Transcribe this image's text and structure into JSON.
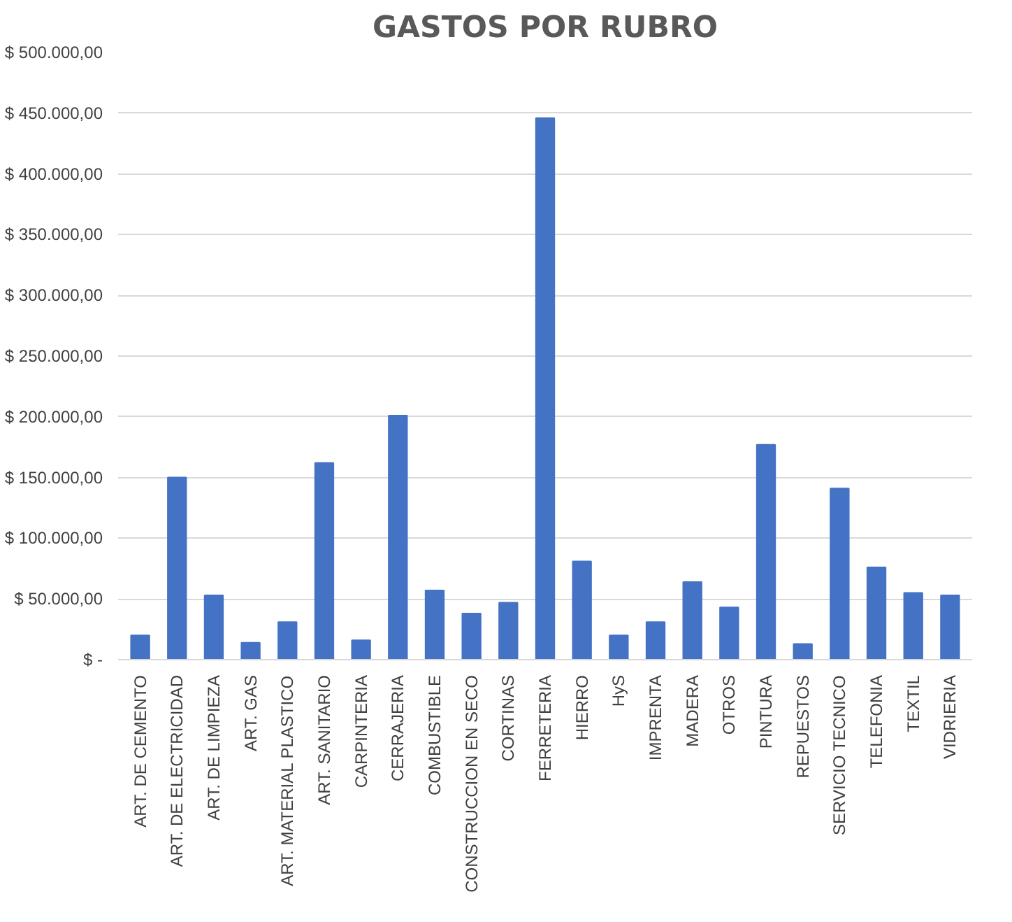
{
  "chart_data": {
    "type": "bar",
    "title": "GASTOS POR RUBRO",
    "categories": [
      "ART. DE CEMENTO",
      "ART. DE ELECTRICIDAD",
      "ART. DE LIMPIEZA",
      "ART. GAS",
      "ART. MATERIAL PLASTICO",
      "ART. SANITARIO",
      "CARPINTERIA",
      "CERRAJERIA",
      "COMBUSTIBLE",
      "CONSTRUCCION EN SECO",
      "CORTINAS",
      "FERRETERIA",
      "HIERRO",
      "HyS",
      "IMPRENTA",
      "MADERA",
      "OTROS",
      "PINTURA",
      "REPUESTOS",
      "SERVICIO TECNICO",
      "TELEFONIA",
      "TEXTIL",
      "VIDRIERIA"
    ],
    "values": [
      20000,
      150000,
      53000,
      14000,
      31000,
      162000,
      16000,
      201000,
      57000,
      38000,
      47000,
      446000,
      81000,
      20000,
      31000,
      64000,
      43000,
      177000,
      13000,
      141000,
      76000,
      55000,
      53000
    ],
    "color": "#4472c4",
    "ylim": [
      0,
      500000
    ],
    "yticks": [
      {
        "value": 0,
        "label": "$ -"
      },
      {
        "value": 50000,
        "label": "$ 50.000,00"
      },
      {
        "value": 100000,
        "label": "$ 100.000,00"
      },
      {
        "value": 150000,
        "label": "$ 150.000,00"
      },
      {
        "value": 200000,
        "label": "$ 200.000,00"
      },
      {
        "value": 250000,
        "label": "$ 250.000,00"
      },
      {
        "value": 300000,
        "label": "$ 300.000,00"
      },
      {
        "value": 350000,
        "label": "$ 350.000,00"
      },
      {
        "value": 400000,
        "label": "$ 400.000,00"
      },
      {
        "value": 450000,
        "label": "$ 450.000,00"
      },
      {
        "value": 500000,
        "label": "$ 500.000,00"
      }
    ],
    "grid": "y"
  }
}
